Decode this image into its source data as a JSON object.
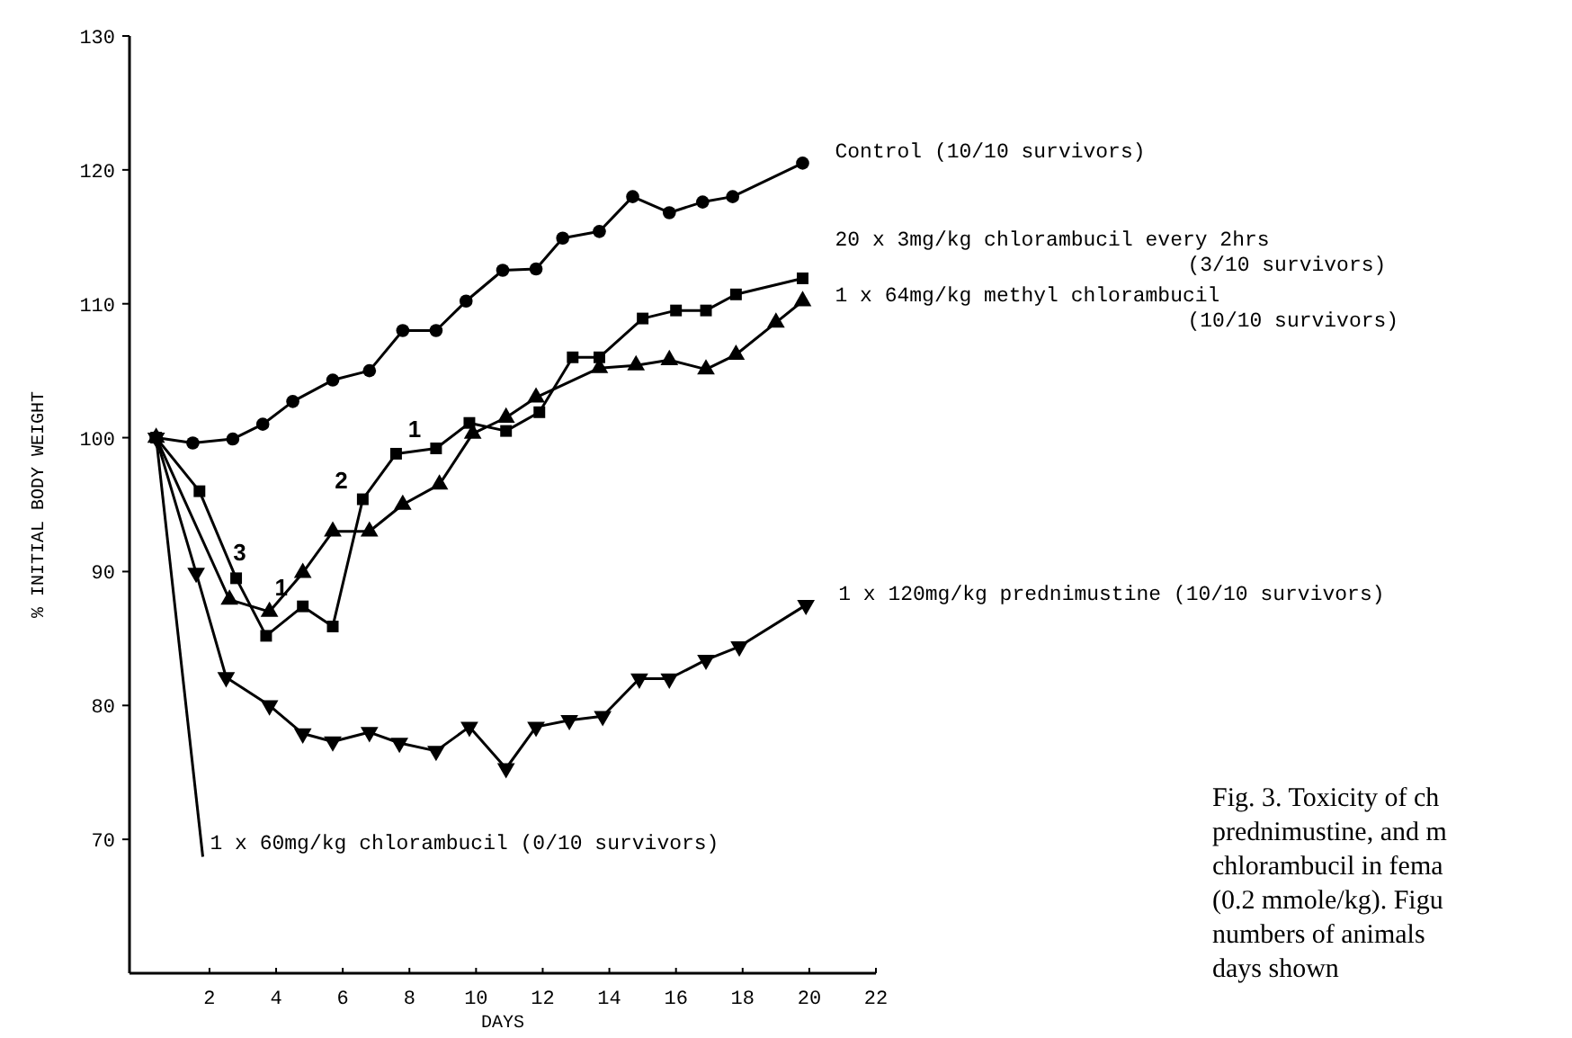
{
  "chart_data": {
    "type": "line",
    "xlabel": "DAYS",
    "ylabel": "% INITIAL BODY WEIGHT",
    "xlim": [
      -0.4,
      22
    ],
    "xticks": [
      2,
      4,
      6,
      8,
      10,
      12,
      14,
      16,
      18,
      20,
      22
    ],
    "ylim": [
      60,
      130
    ],
    "yticks": [
      70,
      80,
      90,
      100,
      110,
      120,
      130
    ],
    "series": [
      {
        "name": "Control (10/10 survivors)",
        "color": "#000000",
        "marker": "circle",
        "x": [
          0.4,
          1.5,
          2.7,
          3.6,
          4.5,
          5.7,
          6.8,
          7.8,
          8.8,
          9.7,
          10.8,
          11.8,
          12.6,
          13.7,
          14.7,
          15.8,
          16.8,
          17.7,
          19.8
        ],
        "values": [
          100,
          99.6,
          99.9,
          101,
          102.7,
          104.3,
          105,
          108,
          108,
          110.2,
          112.5,
          112.6,
          114.9,
          115.4,
          118,
          116.8,
          117.6,
          118,
          120.5
        ]
      },
      {
        "name": "20 x 3mg/kg chlorambucil every 2hrs (3/10 survivors)",
        "color": "#000000",
        "marker": "square",
        "x": [
          0.4,
          1.7,
          2.8,
          3.7,
          4.8,
          5.7,
          6.6,
          7.6,
          8.8,
          9.8,
          10.9,
          11.9,
          12.9,
          13.7,
          15,
          16,
          16.9,
          17.8,
          19.8
        ],
        "values": [
          100,
          96,
          89.5,
          85.2,
          87.4,
          85.9,
          95.4,
          98.8,
          99.2,
          101.1,
          100.5,
          101.9,
          106,
          106,
          108.9,
          109.5,
          109.5,
          110.7,
          111.9
        ]
      },
      {
        "name": "1 x 64mg/kg methyl chlorambucil (10/10 survivors)",
        "color": "#000000",
        "marker": "triangle",
        "x": [
          0.4,
          2.6,
          3.8,
          4.8,
          5.7,
          6.8,
          7.8,
          8.9,
          9.9,
          10.9,
          11.8,
          13.7,
          14.8,
          15.8,
          16.9,
          17.8,
          19,
          19.8
        ],
        "values": [
          100,
          87.9,
          87,
          89.9,
          93,
          93,
          95,
          96.5,
          100.3,
          101.5,
          103,
          105.2,
          105.4,
          105.8,
          105.1,
          106.2,
          108.6,
          110.2
        ]
      },
      {
        "name": "1 x 120mg/kg prednimustine (10/10 survivors)",
        "color": "#000000",
        "marker": "triangle-down",
        "x": [
          0.4,
          1.6,
          2.5,
          3.8,
          4.8,
          5.7,
          6.8,
          7.7,
          8.8,
          9.8,
          10.9,
          11.8,
          12.8,
          13.8,
          14.9,
          15.8,
          16.9,
          17.9,
          19.9
        ],
        "values": [
          100,
          89.9,
          82.1,
          80,
          77.9,
          77.3,
          78,
          77.2,
          76.6,
          78.4,
          75.3,
          78.4,
          78.9,
          79.2,
          82,
          82,
          83.4,
          84.4,
          87.5
        ]
      },
      {
        "name": "1 x 60mg/kg chlorambucil (0/10 survivors)",
        "color": "#000000",
        "marker": "none",
        "x": [
          0.4,
          1.8
        ],
        "values": [
          100,
          68.7
        ]
      }
    ],
    "annotations": [
      {
        "text": "3",
        "x": 2.8,
        "y": 89.5
      },
      {
        "text": "1",
        "x": 4.8,
        "y": 87.4
      },
      {
        "text": "2",
        "x": 6.6,
        "y": 95.4
      },
      {
        "text": "1",
        "x": 8.8,
        "y": 99.2
      },
      "Fig. 3. Toxicity of ch\nprednimustine, and m\nchlorambucil in fema\n(0.2 mmole/kg). Figu\nnumbers of animals\ndays shown"
    ]
  }
}
